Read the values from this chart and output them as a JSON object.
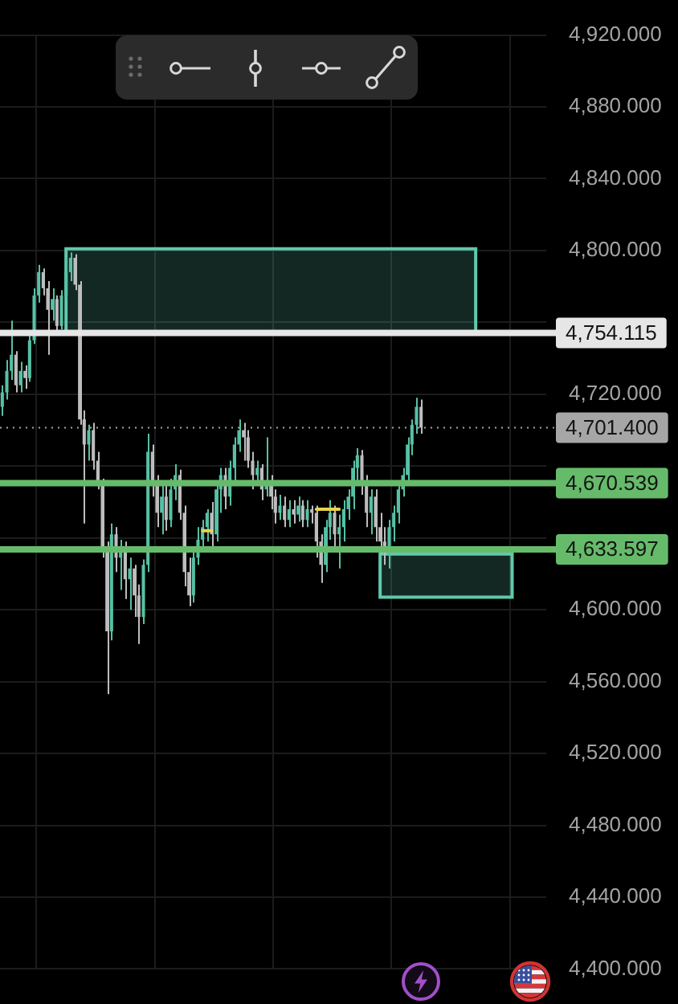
{
  "chart_data": {
    "type": "candlestick",
    "categories": [
      null,
      null,
      null,
      null,
      null,
      null,
      null,
      null,
      null,
      null,
      null,
      null,
      null,
      null,
      null,
      null,
      null,
      null,
      null,
      null,
      null,
      null,
      null,
      null,
      null,
      null,
      null,
      null,
      null,
      null,
      null,
      null,
      null,
      null,
      null,
      null,
      null,
      null,
      null,
      null,
      null,
      null,
      null,
      null,
      null,
      null,
      null,
      null,
      null,
      null,
      null,
      null,
      null,
      null,
      null,
      null,
      null,
      null,
      null,
      null,
      null,
      null,
      null,
      null,
      null,
      null,
      null,
      null,
      null,
      null,
      null,
      null,
      null,
      null,
      null,
      null,
      null,
      null,
      null,
      null,
      null,
      null,
      null,
      null,
      null,
      null,
      null,
      null,
      null,
      null,
      null,
      null,
      null,
      null,
      null,
      null,
      null,
      null,
      null,
      null,
      null,
      null,
      null,
      null,
      null,
      null,
      null,
      null,
      null,
      null,
      null,
      null,
      null,
      null,
      null,
      null,
      null,
      null,
      null,
      null
    ],
    "ylim": [
      4400,
      4920
    ],
    "yticks": [
      {
        "value": 4400,
        "label": "4,400.000"
      },
      {
        "value": 4440,
        "label": "4,440.000"
      },
      {
        "value": 4480,
        "label": "4,480.000"
      },
      {
        "value": 4520,
        "label": "4,520.000"
      },
      {
        "value": 4560,
        "label": "4,560.000"
      },
      {
        "value": 4600,
        "label": "4,600.000"
      },
      {
        "value": 4640,
        "label": null
      },
      {
        "value": 4680,
        "label": null
      },
      {
        "value": 4720,
        "label": "4,720.000"
      },
      {
        "value": 4760,
        "label": null
      },
      {
        "value": 4800,
        "label": "4,800.000"
      },
      {
        "value": 4840,
        "label": "4,840.000"
      },
      {
        "value": 4880,
        "label": "4,880.000"
      },
      {
        "value": 4920,
        "label": "4,920.000"
      }
    ],
    "grid": true,
    "series": [
      {
        "ohlc": [
          [
            4713,
            4725,
            4708,
            4721
          ],
          [
            4721,
            4739,
            4717,
            4733
          ],
          [
            4733,
            4761,
            4728,
            4742
          ],
          [
            4742,
            4744,
            4721,
            4725
          ],
          [
            4725,
            4738,
            4721,
            4733
          ],
          [
            4733,
            4736,
            4723,
            4729
          ],
          [
            4729,
            4754,
            4727,
            4750
          ],
          [
            4750,
            4779,
            4748,
            4775
          ],
          [
            4775,
            4792,
            4771,
            4788
          ],
          [
            4788,
            4790,
            4775,
            4779
          ],
          [
            4779,
            4783,
            4742,
            4767
          ],
          [
            4767,
            4779,
            4761,
            4773
          ],
          [
            4773,
            4775,
            4754,
            4758
          ],
          [
            4758,
            4778,
            4756,
            4775
          ],
          [
            4775,
            4796,
            4773,
            4788
          ],
          [
            4788,
            4799,
            4783,
            4796
          ],
          [
            4796,
            4798,
            4778,
            4781
          ],
          [
            4781,
            4783,
            4703,
            4706
          ],
          [
            4706,
            4711,
            4648,
            4692
          ],
          [
            4692,
            4703,
            4683,
            4700
          ],
          [
            4700,
            4704,
            4678,
            4683
          ],
          [
            4683,
            4688,
            4667,
            4671
          ],
          [
            4671,
            4673,
            4629,
            4633
          ],
          [
            4633,
            4638,
            4553,
            4588
          ],
          [
            4588,
            4648,
            4583,
            4642
          ],
          [
            4642,
            4646,
            4621,
            4629
          ],
          [
            4629,
            4639,
            4611,
            4633
          ],
          [
            4633,
            4638,
            4606,
            4617
          ],
          [
            4617,
            4629,
            4600,
            4623
          ],
          [
            4623,
            4625,
            4596,
            4608
          ],
          [
            4608,
            4614,
            4581,
            4596
          ],
          [
            4596,
            4628,
            4592,
            4625
          ],
          [
            4625,
            4698,
            4621,
            4688
          ],
          [
            4688,
            4692,
            4663,
            4671
          ],
          [
            4671,
            4675,
            4646,
            4654
          ],
          [
            4654,
            4669,
            4642,
            4663
          ],
          [
            4663,
            4671,
            4644,
            4650
          ],
          [
            4650,
            4673,
            4646,
            4667
          ],
          [
            4667,
            4681,
            4661,
            4675
          ],
          [
            4675,
            4678,
            4650,
            4654
          ],
          [
            4654,
            4658,
            4613,
            4621
          ],
          [
            4621,
            4629,
            4602,
            4608
          ],
          [
            4608,
            4633,
            4604,
            4629
          ],
          [
            4629,
            4646,
            4625,
            4639
          ],
          [
            4639,
            4650,
            4633,
            4646
          ],
          [
            4646,
            4656,
            4638,
            4654
          ],
          [
            4654,
            4660,
            4633,
            4642
          ],
          [
            4642,
            4671,
            4638,
            4667
          ],
          [
            4667,
            4679,
            4654,
            4675
          ],
          [
            4675,
            4679,
            4656,
            4663
          ],
          [
            4663,
            4683,
            4658,
            4679
          ],
          [
            4679,
            4696,
            4671,
            4692
          ],
          [
            4692,
            4706,
            4688,
            4700
          ],
          [
            4700,
            4704,
            4683,
            4696
          ],
          [
            4696,
            4700,
            4679,
            4683
          ],
          [
            4683,
            4688,
            4667,
            4675
          ],
          [
            4675,
            4683,
            4669,
            4679
          ],
          [
            4679,
            4681,
            4661,
            4667
          ],
          [
            4667,
            4696,
            4663,
            4671
          ],
          [
            4671,
            4675,
            4656,
            4663
          ],
          [
            4663,
            4667,
            4648,
            4654
          ],
          [
            4654,
            4664,
            4650,
            4658
          ],
          [
            4658,
            4663,
            4646,
            4650
          ],
          [
            4650,
            4661,
            4646,
            4656
          ],
          [
            4656,
            4661,
            4648,
            4653
          ],
          [
            4653,
            4663,
            4649,
            4658
          ],
          [
            4658,
            4661,
            4646,
            4650
          ],
          [
            4650,
            4661,
            4646,
            4656
          ],
          [
            4656,
            4658,
            4648,
            4654
          ],
          [
            4654,
            4658,
            4629,
            4638
          ],
          [
            4638,
            4642,
            4615,
            4625
          ],
          [
            4625,
            4650,
            4621,
            4646
          ],
          [
            4646,
            4661,
            4639,
            4654
          ],
          [
            4654,
            4658,
            4633,
            4642
          ],
          [
            4642,
            4653,
            4623,
            4646
          ],
          [
            4646,
            4661,
            4638,
            4656
          ],
          [
            4656,
            4667,
            4650,
            4663
          ],
          [
            4663,
            4683,
            4656,
            4679
          ],
          [
            4679,
            4690,
            4671,
            4686
          ],
          [
            4686,
            4689,
            4664,
            4671
          ],
          [
            4671,
            4675,
            4646,
            4654
          ],
          [
            4654,
            4667,
            4642,
            4663
          ],
          [
            4663,
            4667,
            4638,
            4646
          ],
          [
            4646,
            4654,
            4631,
            4638
          ],
          [
            4638,
            4646,
            4625,
            4633
          ],
          [
            4633,
            4650,
            4623,
            4646
          ],
          [
            4646,
            4658,
            4638,
            4654
          ],
          [
            4654,
            4671,
            4648,
            4667
          ],
          [
            4667,
            4679,
            4663,
            4675
          ],
          [
            4675,
            4696,
            4671,
            4692
          ],
          [
            4692,
            4706,
            4686,
            4703
          ],
          [
            4703,
            4718,
            4698,
            4713
          ],
          [
            4713,
            4717,
            4698,
            4701.4
          ],
          null,
          null,
          null,
          null,
          null,
          null,
          null,
          null,
          null,
          null,
          null,
          null,
          null,
          null,
          null,
          null,
          null,
          null,
          null,
          null,
          null,
          null,
          null,
          null,
          null,
          null,
          null
        ],
        "colors": [
          "#56c1a5",
          "#56c1a5",
          "#56c1a5",
          "#bdbdbd",
          "#56c1a5",
          "#bdbdbd",
          "#56c1a5",
          "#56c1a5",
          "#56c1a5",
          "#bdbdbd",
          "#bdbdbd",
          "#56c1a5",
          "#bdbdbd",
          "#56c1a5",
          "#56c1a5",
          "#56c1a5",
          "#bdbdbd",
          "#bdbdbd",
          "#bdbdbd",
          "#56c1a5",
          "#bdbdbd",
          "#bdbdbd",
          "#bdbdbd",
          "#bdbdbd",
          "#56c1a5",
          "#bdbdbd",
          "#56c1a5",
          "#bdbdbd",
          "#56c1a5",
          "#bdbdbd",
          "#bdbdbd",
          "#56c1a5",
          "#56c1a5",
          "#bdbdbd",
          "#bdbdbd",
          "#56c1a5",
          "#bdbdbd",
          "#56c1a5",
          "#56c1a5",
          "#bdbdbd",
          "#bdbdbd",
          "#bdbdbd",
          "#56c1a5",
          "#56c1a5",
          "#56c1a5",
          "#56c1a5",
          "#bdbdbd",
          "#56c1a5",
          "#56c1a5",
          "#bdbdbd",
          "#56c1a5",
          "#56c1a5",
          "#56c1a5",
          "#bdbdbd",
          "#bdbdbd",
          "#bdbdbd",
          "#56c1a5",
          "#bdbdbd",
          "#56c1a5",
          "#bdbdbd",
          "#bdbdbd",
          "#56c1a5",
          "#bdbdbd",
          "#56c1a5",
          "#bdbdbd",
          "#56c1a5",
          "#bdbdbd",
          "#56c1a5",
          "#bdbdbd",
          "#bdbdbd",
          "#bdbdbd",
          "#56c1a5",
          "#56c1a5",
          "#bdbdbd",
          "#56c1a5",
          "#56c1a5",
          "#56c1a5",
          "#56c1a5",
          "#56c1a5",
          "#bdbdbd",
          "#bdbdbd",
          "#56c1a5",
          "#bdbdbd",
          "#bdbdbd",
          "#bdbdbd",
          "#56c1a5",
          "#56c1a5",
          "#56c1a5",
          "#56c1a5",
          "#56c1a5",
          "#56c1a5",
          "#56c1a5",
          "#bdbdbd",
          null,
          null,
          null,
          null,
          null,
          null,
          null,
          null,
          null,
          null,
          null,
          null,
          null,
          null,
          null,
          null,
          null,
          null,
          null,
          null,
          null,
          null,
          null,
          null,
          null,
          null,
          null
        ]
      },
      {
        "type": "line",
        "color": "#e8d44d",
        "values": [
          null,
          null,
          null,
          null,
          null,
          null,
          null,
          null,
          null,
          null,
          null,
          null,
          null,
          null,
          null,
          null,
          null,
          null,
          null,
          null,
          null,
          null,
          null,
          null,
          null,
          null,
          null,
          null,
          null,
          null,
          null,
          null,
          null,
          null,
          null,
          null,
          null,
          null,
          null,
          null,
          null,
          null,
          null,
          null,
          4644,
          4644,
          4644,
          null,
          null,
          null,
          null,
          null,
          null,
          null,
          null,
          null,
          null,
          null,
          null,
          null,
          null,
          null,
          null,
          null,
          null,
          null,
          null,
          null,
          null,
          4656,
          4656,
          4656,
          4656,
          4656,
          4656,
          null,
          null,
          null,
          null,
          null,
          null,
          null,
          null,
          null,
          null,
          null,
          null,
          null,
          null,
          null,
          null,
          null,
          null,
          null,
          null,
          null,
          null,
          null,
          null,
          null,
          null,
          null,
          null,
          null,
          null,
          null,
          null,
          null,
          null,
          null,
          null,
          null,
          null,
          null,
          null,
          null,
          null,
          null,
          null,
          null
        ]
      }
    ],
    "bands": [
      {
        "axis": "y",
        "from": 4754,
        "to": 4801,
        "color": "#5fc9ad"
      },
      {
        "axis": "y",
        "from": 4607,
        "to": 4631,
        "color": "#5fc9ad"
      }
    ],
    "ref_lines": [
      {
        "axis": "y",
        "value": 4754.115,
        "label": "4,754.115",
        "color": "#e6e6e6"
      },
      {
        "axis": "y",
        "value": 4701.4,
        "label": "4,701.400",
        "color": "#a6a6a6",
        "line_style": "dotted"
      },
      {
        "axis": "y",
        "value": 4670.539,
        "label": "4,670.539",
        "color": "#66bb6a"
      },
      {
        "axis": "y",
        "value": 4633.597,
        "label": "4,633.597",
        "color": "#66bb6a"
      }
    ]
  }
}
